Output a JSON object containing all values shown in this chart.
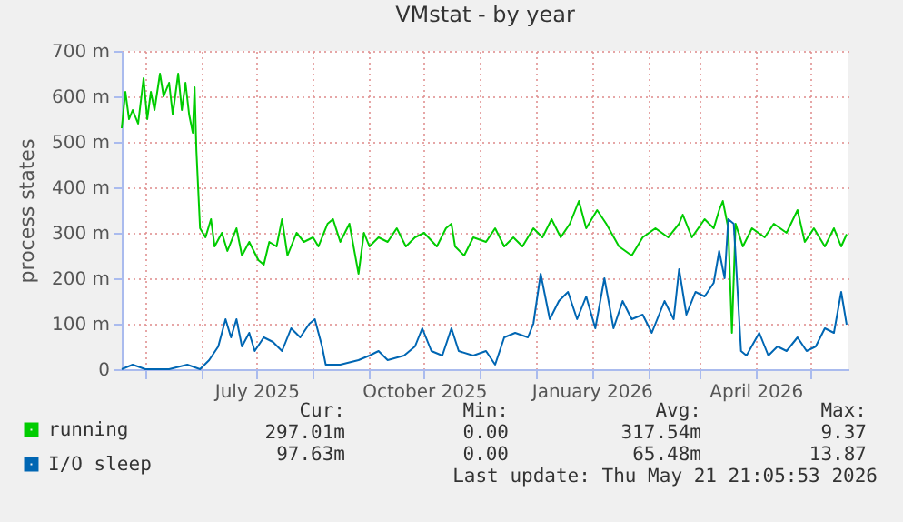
{
  "chart_data": {
    "type": "line",
    "title": "VMstat - by year",
    "ylabel": "process states",
    "xlim": [
      "2025-04-18",
      "2026-05-22"
    ],
    "xticks": [
      {
        "value": "2025-05-01",
        "label": null
      },
      {
        "value": "2025-06-01",
        "label": null
      },
      {
        "value": "2025-07-01",
        "label": "July 2025"
      },
      {
        "value": "2025-08-01",
        "label": null
      },
      {
        "value": "2025-09-01",
        "label": null
      },
      {
        "value": "2025-10-01",
        "label": "October 2025"
      },
      {
        "value": "2025-11-01",
        "label": null
      },
      {
        "value": "2025-12-01",
        "label": null
      },
      {
        "value": "2026-01-01",
        "label": "January 2026"
      },
      {
        "value": "2026-02-01",
        "label": null
      },
      {
        "value": "2026-03-01",
        "label": null
      },
      {
        "value": "2026-04-01",
        "label": "April 2026"
      },
      {
        "value": "2026-05-01",
        "label": null
      }
    ],
    "ylim": [
      0,
      700
    ],
    "yticks": [
      0,
      {
        "value": 100,
        "label": "100 m"
      },
      {
        "value": 200,
        "label": "200 m"
      },
      {
        "value": 300,
        "label": "300 m"
      },
      {
        "value": 400,
        "label": "400 m"
      },
      {
        "value": 500,
        "label": "500 m"
      },
      {
        "value": 600,
        "label": "600 m"
      },
      {
        "value": 700,
        "label": "700 m"
      }
    ],
    "grid": true,
    "legend": "bottom",
    "marker": "none",
    "line_style": "solid",
    "series": [
      {
        "name": "running",
        "color": "#00cc00",
        "x": [
          "2025-04-18",
          "2025-04-20",
          "2025-04-22",
          "2025-04-24",
          "2025-04-27",
          "2025-04-30",
          "2025-05-02",
          "2025-05-04",
          "2025-05-06",
          "2025-05-09",
          "2025-05-11",
          "2025-05-14",
          "2025-05-16",
          "2025-05-19",
          "2025-05-21",
          "2025-05-23",
          "2025-05-25",
          "2025-05-27",
          "2025-05-28",
          "2025-05-29",
          "2025-05-31",
          "2025-06-03",
          "2025-06-06",
          "2025-06-08",
          "2025-06-12",
          "2025-06-15",
          "2025-06-20",
          "2025-06-23",
          "2025-06-27",
          "2025-07-02",
          "2025-07-05",
          "2025-07-08",
          "2025-07-12",
          "2025-07-15",
          "2025-07-18",
          "2025-07-23",
          "2025-07-27",
          "2025-08-01",
          "2025-08-04",
          "2025-08-09",
          "2025-08-12",
          "2025-08-16",
          "2025-08-21",
          "2025-08-26",
          "2025-08-29",
          "2025-09-01",
          "2025-09-06",
          "2025-09-11",
          "2025-09-16",
          "2025-09-21",
          "2025-09-26",
          "2025-10-01",
          "2025-10-08",
          "2025-10-13",
          "2025-10-16",
          "2025-10-18",
          "2025-10-23",
          "2025-10-28",
          "2025-11-04",
          "2025-11-09",
          "2025-11-14",
          "2025-11-19",
          "2025-11-24",
          "2025-11-30",
          "2025-12-05",
          "2025-12-10",
          "2025-12-15",
          "2025-12-20",
          "2025-12-25",
          "2025-12-29",
          "2026-01-04",
          "2026-01-09",
          "2026-01-16",
          "2026-01-23",
          "2026-01-29",
          "2026-02-05",
          "2026-02-12",
          "2026-02-18",
          "2026-02-20",
          "2026-02-25",
          "2026-03-04",
          "2026-03-09",
          "2026-03-12",
          "2026-03-14",
          "2026-03-17",
          "2026-03-19",
          "2026-03-21",
          "2026-03-25",
          "2026-03-30",
          "2026-04-06",
          "2026-04-11",
          "2026-04-18",
          "2026-04-24",
          "2026-04-28",
          "2026-05-03",
          "2026-05-09",
          "2026-05-14",
          "2026-05-18",
          "2026-05-21"
        ],
        "values": [
          530,
          610,
          550,
          570,
          540,
          640,
          550,
          610,
          570,
          650,
          600,
          630,
          560,
          650,
          570,
          630,
          560,
          520,
          620,
          480,
          310,
          290,
          330,
          270,
          300,
          260,
          310,
          250,
          280,
          240,
          230,
          280,
          270,
          330,
          250,
          300,
          280,
          290,
          270,
          320,
          330,
          280,
          320,
          210,
          300,
          270,
          290,
          280,
          310,
          270,
          290,
          300,
          270,
          310,
          320,
          270,
          250,
          290,
          280,
          310,
          270,
          290,
          270,
          310,
          290,
          330,
          290,
          320,
          370,
          310,
          350,
          320,
          270,
          250,
          290,
          310,
          290,
          320,
          340,
          290,
          330,
          310,
          350,
          370,
          310,
          80,
          320,
          270,
          310,
          290,
          320,
          300,
          350,
          280,
          310,
          270,
          310,
          270,
          297
        ]
      },
      {
        "name": "I/O sleep",
        "color": "#0066b3",
        "x": [
          "2025-04-18",
          "2025-04-24",
          "2025-05-01",
          "2025-05-14",
          "2025-05-24",
          "2025-05-31",
          "2025-06-05",
          "2025-06-10",
          "2025-06-14",
          "2025-06-17",
          "2025-06-20",
          "2025-06-23",
          "2025-06-27",
          "2025-06-30",
          "2025-07-05",
          "2025-07-10",
          "2025-07-15",
          "2025-07-20",
          "2025-07-25",
          "2025-07-30",
          "2025-08-02",
          "2025-08-06",
          "2025-08-08",
          "2025-08-16",
          "2025-08-26",
          "2025-09-01",
          "2025-09-06",
          "2025-09-11",
          "2025-09-20",
          "2025-09-26",
          "2025-09-30",
          "2025-10-05",
          "2025-10-11",
          "2025-10-16",
          "2025-10-20",
          "2025-10-28",
          "2025-11-04",
          "2025-11-09",
          "2025-11-14",
          "2025-11-20",
          "2025-11-27",
          "2025-11-30",
          "2025-12-04",
          "2025-12-09",
          "2025-12-14",
          "2025-12-19",
          "2025-12-24",
          "2025-12-29",
          "2026-01-03",
          "2026-01-08",
          "2026-01-13",
          "2026-01-18",
          "2026-01-23",
          "2026-01-29",
          "2026-02-03",
          "2026-02-10",
          "2026-02-15",
          "2026-02-18",
          "2026-02-22",
          "2026-02-27",
          "2026-03-04",
          "2026-03-09",
          "2026-03-12",
          "2026-03-15",
          "2026-03-17",
          "2026-03-20",
          "2026-03-24",
          "2026-03-27",
          "2026-04-03",
          "2026-04-08",
          "2026-04-13",
          "2026-04-18",
          "2026-04-24",
          "2026-04-29",
          "2026-05-04",
          "2026-05-09",
          "2026-05-14",
          "2026-05-18",
          "2026-05-21"
        ],
        "values": [
          0,
          10,
          0,
          0,
          10,
          0,
          20,
          50,
          110,
          70,
          110,
          50,
          80,
          40,
          70,
          60,
          40,
          90,
          70,
          100,
          110,
          50,
          10,
          10,
          20,
          30,
          40,
          20,
          30,
          50,
          90,
          40,
          30,
          90,
          40,
          30,
          40,
          10,
          70,
          80,
          70,
          100,
          210,
          110,
          150,
          170,
          110,
          160,
          90,
          200,
          90,
          150,
          110,
          120,
          80,
          150,
          110,
          220,
          120,
          170,
          160,
          190,
          260,
          200,
          330,
          320,
          40,
          30,
          80,
          30,
          50,
          40,
          70,
          40,
          50,
          90,
          80,
          170,
          98
        ]
      }
    ],
    "annotations": [
      "Cur:",
      "Min:",
      "Avg:",
      "Max:",
      "297.01m",
      "0.00",
      "317.54m",
      "9.37",
      "97.63m",
      "0.00",
      "65.48m",
      "13.87",
      "Last update: Thu May 21 21:05:53 2026"
    ]
  }
}
